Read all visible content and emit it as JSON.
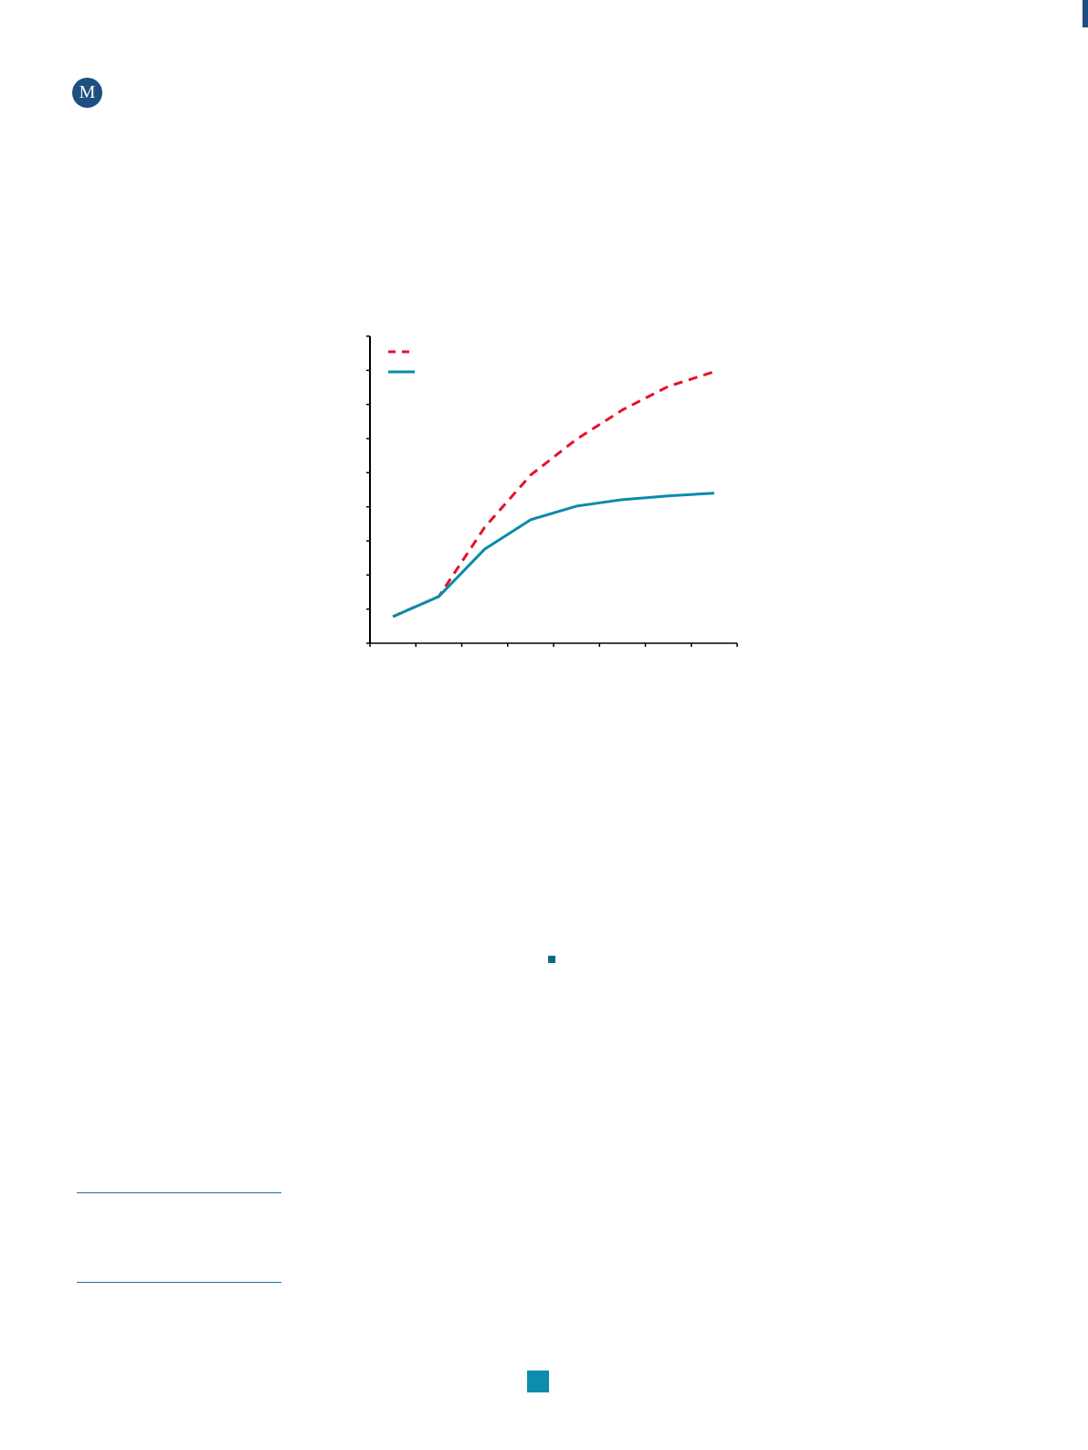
{
  "logo": {
    "letters": "M",
    "color": "#1d4f80"
  },
  "chart_data": {
    "type": "line",
    "title": "",
    "xlabel": "",
    "ylabel": "",
    "x": [
      1,
      2,
      3,
      4,
      5,
      6,
      7,
      8
    ],
    "xlim": [
      0.5,
      8.5
    ],
    "ylim": [
      0,
      9
    ],
    "grid": false,
    "legend": "top-left",
    "series": [
      {
        "style": "dashed",
        "color": "#e8102a",
        "values": [
          0.78,
          1.37,
          3.4,
          4.93,
          5.98,
          6.84,
          7.53,
          7.96
        ]
      },
      {
        "style": "solid",
        "color": "#0a8aab",
        "values": [
          0.78,
          1.37,
          2.76,
          3.62,
          4.02,
          4.21,
          4.32,
          4.4
        ]
      }
    ]
  },
  "colors": {
    "accent": "#0d8cb0",
    "brand": "#1d4f80",
    "rule": "#1d6fa5"
  }
}
